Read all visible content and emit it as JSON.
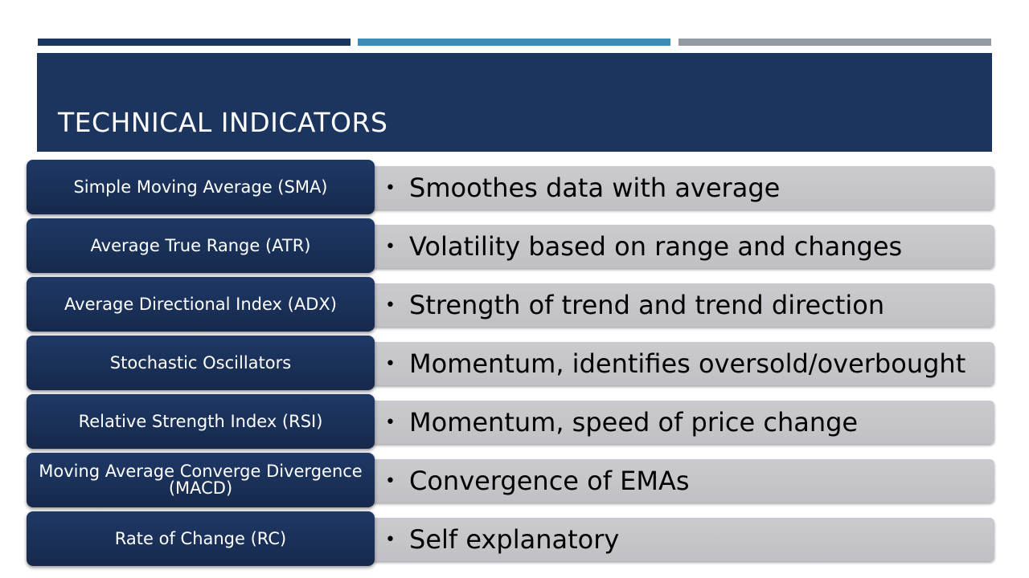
{
  "slide": {
    "title": "TECHNICAL INDICATORS"
  },
  "indicators": [
    {
      "label": "Simple Moving Average (SMA)",
      "description": "Smoothes data with average"
    },
    {
      "label": "Average True Range (ATR)",
      "description": "Volatility based on range and changes"
    },
    {
      "label": "Average Directional Index (ADX)",
      "description": "Strength of trend and trend direction"
    },
    {
      "label": "Stochastic Oscillators",
      "description": "Momentum, identifies oversold/overbought"
    },
    {
      "label": "Relative Strength Index (RSI)",
      "description": "Momentum, speed of price change"
    },
    {
      "label": "Moving Average Converge Divergence (MACD)",
      "description": "Convergence of EMAs"
    },
    {
      "label": "Rate of Change (RC)",
      "description": "Self explanatory"
    }
  ],
  "colors": {
    "navy": "#1c355e",
    "blue_accent": "#3f8bb8",
    "gray_accent": "#929ba3",
    "description_box": "#c6c6ca"
  }
}
